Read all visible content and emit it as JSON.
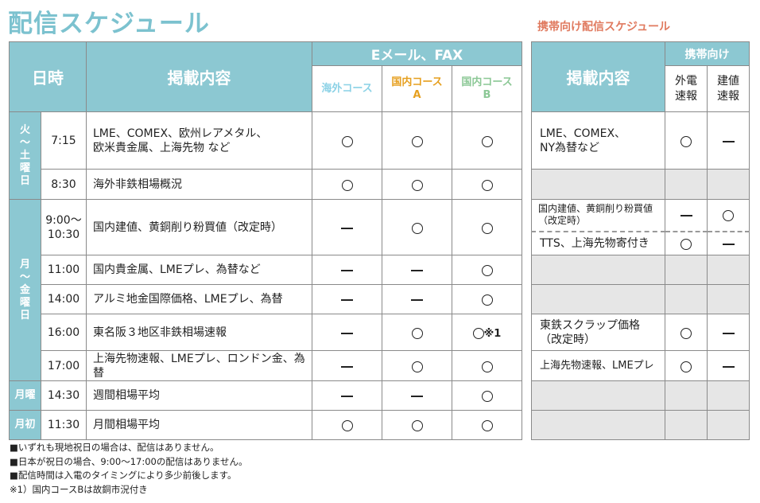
{
  "title": "配信スケジュール",
  "mobile_title": "携帯向け配信スケジュール",
  "header": {
    "datetime": "日時",
    "content": "掲載内容",
    "email_fax": "Eメール、FAX",
    "course_overseas": "海外コース",
    "course_a": "国内コース\nA",
    "course_b": "国内コース\nB"
  },
  "colors": {
    "header_bg": "#8cc8d2",
    "overseas": "#8cd2e6",
    "course_a": "#e6a020",
    "course_b": "#8cc896",
    "mobile_title": "#e07a5f"
  },
  "days": {
    "sat": "火\n〜\n土\n曜\n日",
    "weekday": "月\n〜\n金\n曜\n日",
    "mon": "月曜",
    "first": "月初"
  },
  "rows": [
    {
      "time": "7:15",
      "content": "LME、COMEX、欧州レアメタル、\n欧米貴金属、上海先物 など",
      "m": [
        "○",
        "○",
        "○"
      ]
    },
    {
      "time": "8:30",
      "content": "海外非鉄相場概況",
      "m": [
        "○",
        "○",
        "○"
      ]
    },
    {
      "time": "9:00〜\n10:30",
      "content": "国内建値、黄銅削り粉買値（改定時）",
      "m": [
        "—",
        "○",
        "○"
      ]
    },
    {
      "time": "11:00",
      "content": "国内貴金属、LMEプレ、為替など",
      "m": [
        "—",
        "—",
        "○"
      ]
    },
    {
      "time": "14:00",
      "content": "アルミ地金国際価格、LMEプレ、為替",
      "m": [
        "—",
        "—",
        "○"
      ]
    },
    {
      "time": "16:00",
      "content": "東名阪３地区非鉄相場速報",
      "m": [
        "—",
        "○",
        "○※1"
      ]
    },
    {
      "time": "17:00",
      "content": "上海先物速報、LMEプレ、ロンドン金、為替",
      "m": [
        "—",
        "○",
        "○"
      ]
    },
    {
      "time": "14:30",
      "content": "週間相場平均",
      "m": [
        "—",
        "—",
        "○"
      ]
    },
    {
      "time": "11:30",
      "content": "月間相場平均",
      "m": [
        "○",
        "○",
        "○"
      ]
    }
  ],
  "mobile": {
    "header": {
      "content": "掲載内容",
      "mobile": "携帯向け",
      "col1": "外電\n速報",
      "col2": "建値\n速報"
    },
    "rows": [
      {
        "content": "LME、COMEX、\nNY為替など",
        "m": [
          "○",
          "—"
        ]
      },
      {
        "content": "国内建値、黄銅削り粉買値\n（改定時）",
        "m": [
          "—",
          "○"
        ]
      },
      {
        "content": "TTS、上海先物寄付き",
        "m": [
          "○",
          "—"
        ]
      },
      {
        "content": "東鉄スクラップ価格\n（改定時）",
        "m": [
          "○",
          "—"
        ]
      },
      {
        "content": "上海先物速報、LMEプレ",
        "m": [
          "○",
          "—"
        ]
      }
    ]
  },
  "notes": [
    "■いずれも現地祝日の場合は、配信はありません。",
    "■日本が祝日の場合、9:00〜17:00の配信はありません。",
    "■配信時間は入電のタイミングにより多少前後します。",
    "※1）国内コースBは故銅市況付き"
  ]
}
